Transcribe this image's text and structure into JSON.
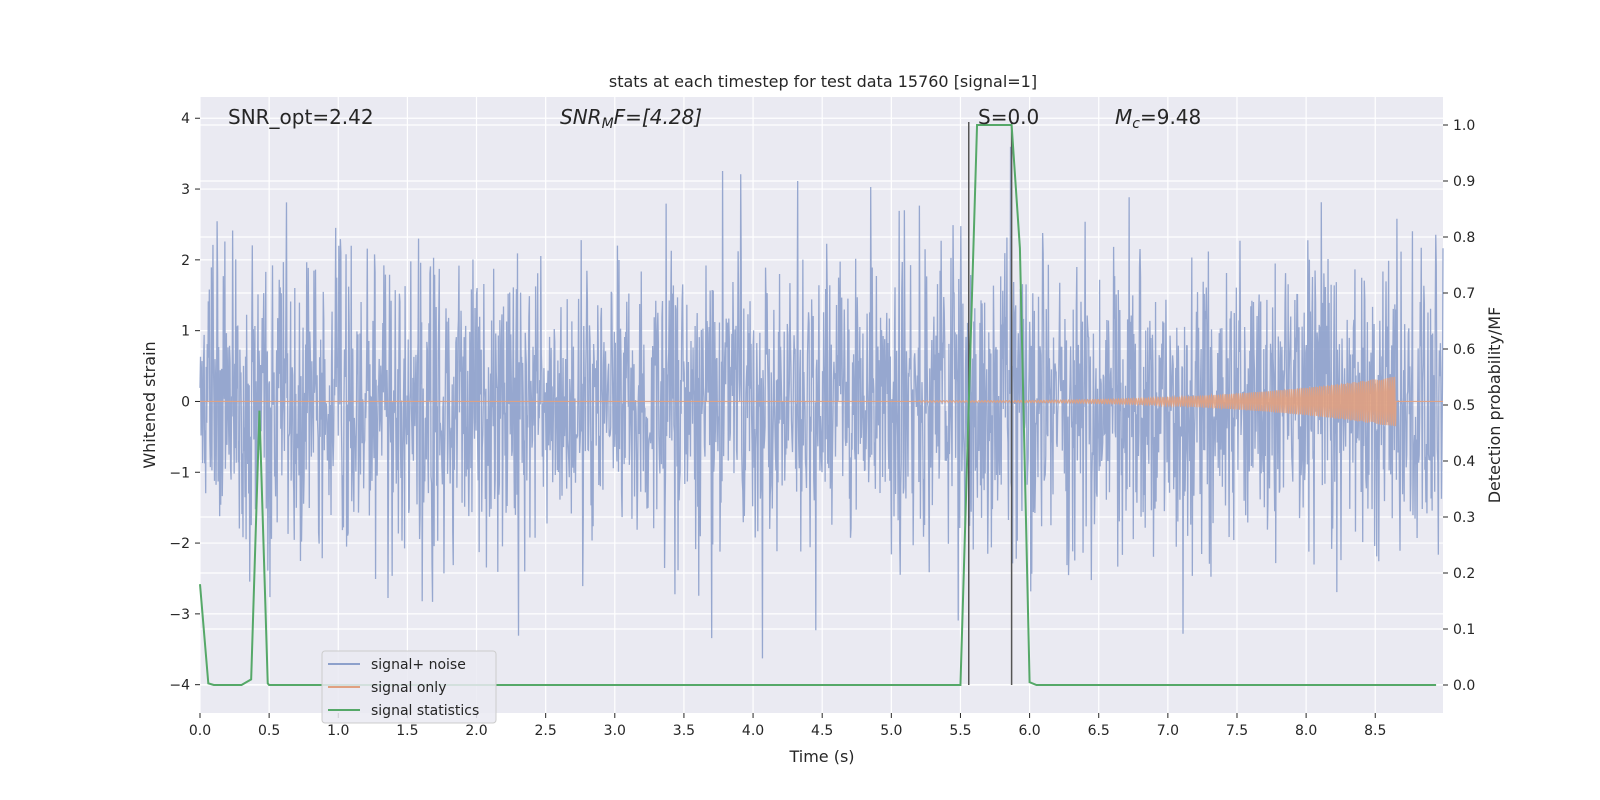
{
  "chart_data": {
    "type": "line",
    "title": "stats at each timestep for test data 15760 [signal=1]",
    "xlabel": "Time (s)",
    "ylabel_left": "Whitened strain",
    "ylabel_right": "Detection probability/MF",
    "xlim": [
      0.0,
      8.99
    ],
    "ylim_left": [
      -4.4,
      4.3
    ],
    "ylim_right": [
      -0.05,
      1.05
    ],
    "x_ticks": [
      "0.0",
      "0.5",
      "1.0",
      "1.5",
      "2.0",
      "2.5",
      "3.0",
      "3.5",
      "4.0",
      "4.5",
      "5.0",
      "5.5",
      "6.0",
      "6.5",
      "7.0",
      "7.5",
      "8.0",
      "8.5"
    ],
    "y_left_ticks": [
      "4",
      "3",
      "2",
      "1",
      "0",
      "−1",
      "−2",
      "−3",
      "−4"
    ],
    "y_right_ticks": [
      "1.0",
      "0.9",
      "0.8",
      "0.7",
      "0.6",
      "0.5",
      "0.4",
      "0.3",
      "0.2",
      "0.1",
      "0.0"
    ],
    "grid": true,
    "legend_position": "lower-left",
    "annotations": {
      "snr_opt": "SNR_opt=2.42",
      "snr_mf_name": "SNR",
      "snr_mf_sub": "M",
      "snr_mf_rest": "F=[4.28]",
      "s_value": "S=0.0",
      "mc_name": "M",
      "mc_sub": "c",
      "mc_rest": "=9.48"
    },
    "vertical_lines_x": [
      5.56,
      5.87
    ],
    "series": [
      {
        "name": "signal+ noise",
        "color": "#8da0cb",
        "axis": "left",
        "description_values": {
          "noise_envelope_std": 1.0,
          "peak_max": 3.95,
          "peak_min": -4.0
        }
      },
      {
        "name": "signal only",
        "color": "#e0a080",
        "axis": "left",
        "chirp_start": 5.2,
        "chirp_end": 8.65,
        "chirp_peak_amplitude": 0.35
      },
      {
        "name": "signal statistics",
        "color": "#55a868",
        "axis": "right",
        "x": [
          0.0,
          0.06,
          0.1,
          0.15,
          0.2,
          0.25,
          0.3,
          0.37,
          0.43,
          0.49,
          0.5,
          0.6,
          1.0,
          2.0,
          3.0,
          4.0,
          5.0,
          5.5,
          5.56,
          5.62,
          5.68,
          5.75,
          5.87,
          5.93,
          6.0,
          6.05,
          6.1,
          7.0,
          8.0,
          8.94
        ],
        "y": [
          0.18,
          0.003,
          0.0,
          0.0,
          0.0,
          0.0,
          0.0,
          0.01,
          0.49,
          0.003,
          0.0,
          0.0,
          0.0,
          0.0,
          0.0,
          0.0,
          0.0,
          0.0,
          0.5,
          1.0,
          1.0,
          1.0,
          1.0,
          0.78,
          0.005,
          0.0,
          0.0,
          0.0,
          0.0,
          0.0
        ]
      }
    ]
  }
}
